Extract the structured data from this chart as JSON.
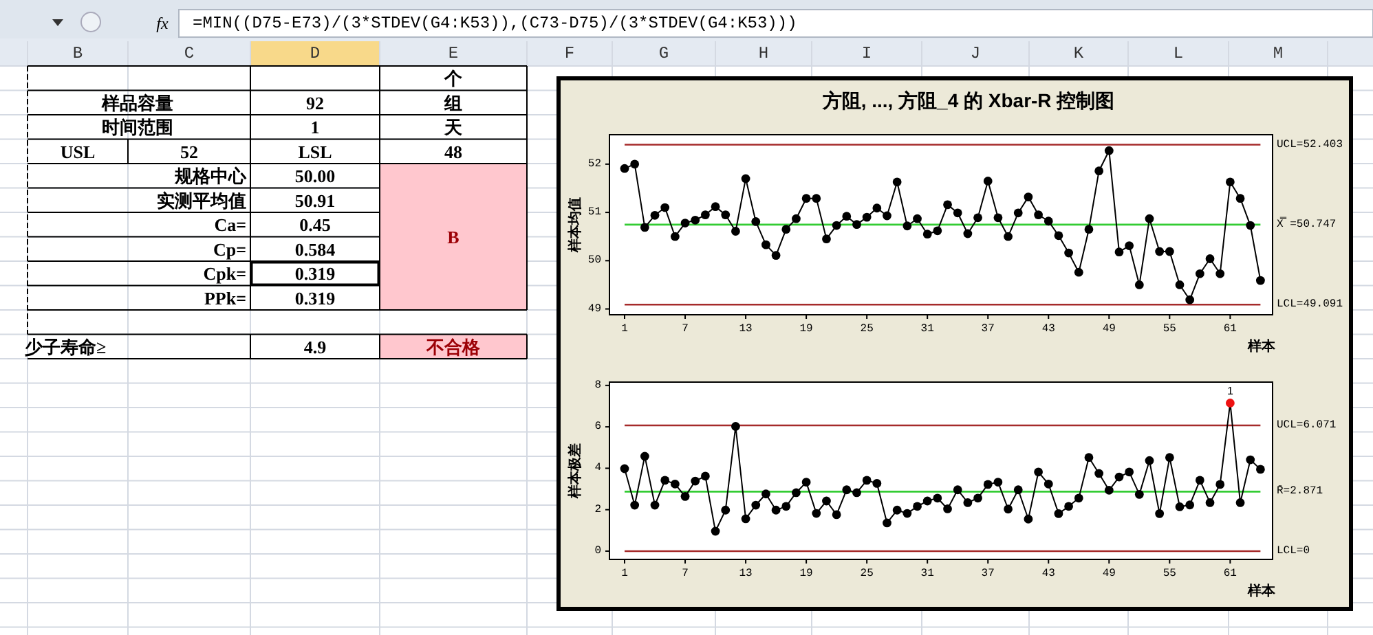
{
  "chart_data": [
    {
      "type": "other",
      "annotations": [
        "fx",
        "=MIN((D75-E73)/(3*STDEV(G4:K53)),(C73-D75)/(3*STDEV(G4:K53)))",
        "B",
        "C",
        "D",
        "E",
        "F",
        "G",
        "H",
        "I",
        "J",
        "K",
        "L",
        "M",
        "个",
        "样品容量",
        "92",
        "组",
        "时间范围",
        "1",
        "天",
        "USL",
        "52",
        "LSL",
        "48",
        "规格中心",
        "50.00",
        "实测平均值",
        "50.91",
        "Ca=",
        "0.45",
        "Cp=",
        "0.584",
        "Cpk=",
        "0.319",
        "PPk=",
        "0.319",
        "B",
        "少子寿命≥",
        "4.9",
        "不合格"
      ]
    },
    {
      "type": "line",
      "title": "方阻, ..., 方阻_4 的 Xbar-R 控制图",
      "xlabel": "样本",
      "ylabel": "样本均值",
      "marker": "circle",
      "grid": false,
      "x": [
        1,
        2,
        3,
        4,
        5,
        6,
        7,
        8,
        9,
        10,
        11,
        12,
        13,
        14,
        15,
        16,
        17,
        18,
        19,
        20,
        21,
        22,
        23,
        24,
        25,
        26,
        27,
        28,
        29,
        30,
        31,
        32,
        33,
        34,
        35,
        36,
        37,
        38,
        39,
        40,
        41,
        42,
        43,
        44,
        45,
        46,
        47,
        48,
        49,
        50,
        51,
        52,
        53,
        54,
        55,
        56,
        57,
        58,
        59,
        60,
        61,
        62,
        63,
        64
      ],
      "series": [
        {
          "color": "#000000",
          "values": [
            51.91,
            52.0,
            50.69,
            50.94,
            51.1,
            50.5,
            50.78,
            50.84,
            50.95,
            51.12,
            50.95,
            50.61,
            51.7,
            50.81,
            50.33,
            50.11,
            50.65,
            50.87,
            51.29,
            51.29,
            50.45,
            50.73,
            50.92,
            50.75,
            50.9,
            51.09,
            50.93,
            51.63,
            50.72,
            50.87,
            50.55,
            50.62,
            51.16,
            50.99,
            50.56,
            50.89,
            51.65,
            50.89,
            50.5,
            50.99,
            51.32,
            50.95,
            50.82,
            50.52,
            50.16,
            49.76,
            50.65,
            51.86,
            52.28,
            50.18,
            50.31,
            49.5,
            50.87,
            50.19,
            50.19,
            49.5,
            49.19,
            49.73,
            50.04,
            49.73,
            51.63,
            51.29,
            50.73,
            49.59
          ]
        }
      ],
      "xlim": [
        -0.5,
        65.2
      ],
      "xticks": [
        1,
        7,
        13,
        19,
        25,
        31,
        37,
        43,
        49,
        55,
        61
      ],
      "ylim": [
        48.88,
        52.61
      ],
      "yticks": [
        49,
        50,
        51,
        52
      ],
      "ref_lines": [
        {
          "axis": "y",
          "value": 52.403,
          "label": "UCL=52.403",
          "color": "#a52a2a"
        },
        {
          "axis": "y",
          "value": 50.747,
          "label": "X̿ =50.747",
          "color": "#33cc33"
        },
        {
          "axis": "y",
          "value": 49.091,
          "label": "LCL=49.091",
          "color": "#a52a2a"
        }
      ]
    },
    {
      "type": "line",
      "xlabel": "样本",
      "ylabel": "样本极差",
      "marker": "circle",
      "grid": false,
      "x": [
        1,
        2,
        3,
        4,
        5,
        6,
        7,
        8,
        9,
        10,
        11,
        12,
        13,
        14,
        15,
        16,
        17,
        18,
        19,
        20,
        21,
        22,
        23,
        24,
        25,
        26,
        27,
        28,
        29,
        30,
        31,
        32,
        33,
        34,
        35,
        36,
        37,
        38,
        39,
        40,
        41,
        42,
        43,
        44,
        45,
        46,
        47,
        48,
        49,
        50,
        51,
        52,
        53,
        54,
        55,
        56,
        57,
        58,
        59,
        60,
        61,
        62,
        63,
        64
      ],
      "series": [
        {
          "color": "#000000",
          "values": [
            3.98,
            2.22,
            4.58,
            2.22,
            3.42,
            3.24,
            2.64,
            3.38,
            3.62,
            0.96,
            1.98,
            6.02,
            1.56,
            2.22,
            2.76,
            1.98,
            2.16,
            2.82,
            3.33,
            1.82,
            2.42,
            1.76,
            2.96,
            2.82,
            3.42,
            3.27,
            1.36,
            1.98,
            1.82,
            2.16,
            2.42,
            2.56,
            2.04,
            2.96,
            2.34,
            2.56,
            3.22,
            3.33,
            2.03,
            2.96,
            1.55,
            3.82,
            3.24,
            1.81,
            2.16,
            2.56,
            4.52,
            3.75,
            2.94,
            3.58,
            3.82,
            2.74,
            4.37,
            1.81,
            4.52,
            2.14,
            2.23,
            3.42,
            2.34,
            3.22,
            7.15,
            2.34,
            4.41,
            3.95
          ],
          "colors": [
            "#000000",
            "#000000",
            "#000000",
            "#000000",
            "#000000",
            "#000000",
            "#000000",
            "#000000",
            "#000000",
            "#000000",
            "#000000",
            "#000000",
            "#000000",
            "#000000",
            "#000000",
            "#000000",
            "#000000",
            "#000000",
            "#000000",
            "#000000",
            "#000000",
            "#000000",
            "#000000",
            "#000000",
            "#000000",
            "#000000",
            "#000000",
            "#000000",
            "#000000",
            "#000000",
            "#000000",
            "#000000",
            "#000000",
            "#000000",
            "#000000",
            "#000000",
            "#000000",
            "#000000",
            "#000000",
            "#000000",
            "#000000",
            "#000000",
            "#000000",
            "#000000",
            "#000000",
            "#000000",
            "#000000",
            "#000000",
            "#000000",
            "#000000",
            "#000000",
            "#000000",
            "#000000",
            "#000000",
            "#000000",
            "#000000",
            "#000000",
            "#000000",
            "#000000",
            "#000000",
            "#ee1111",
            "#000000",
            "#000000",
            "#000000"
          ]
        }
      ],
      "xlim": [
        -0.5,
        65.2
      ],
      "xticks": [
        1,
        7,
        13,
        19,
        25,
        31,
        37,
        43,
        49,
        55,
        61
      ],
      "ylim": [
        -0.4,
        8.16
      ],
      "yticks": [
        0,
        2,
        4,
        6,
        8
      ],
      "annotations": [
        {
          "text": "1",
          "x": 61,
          "y": 7.15
        }
      ],
      "ref_lines": [
        {
          "axis": "y",
          "value": 6.071,
          "label": "UCL=6.071",
          "color": "#a52a2a"
        },
        {
          "axis": "y",
          "value": 2.871,
          "label": "R̄=2.871",
          "color": "#33cc33"
        },
        {
          "axis": "y",
          "value": 0,
          "label": "LCL=0",
          "color": "#a52a2a"
        }
      ]
    }
  ]
}
